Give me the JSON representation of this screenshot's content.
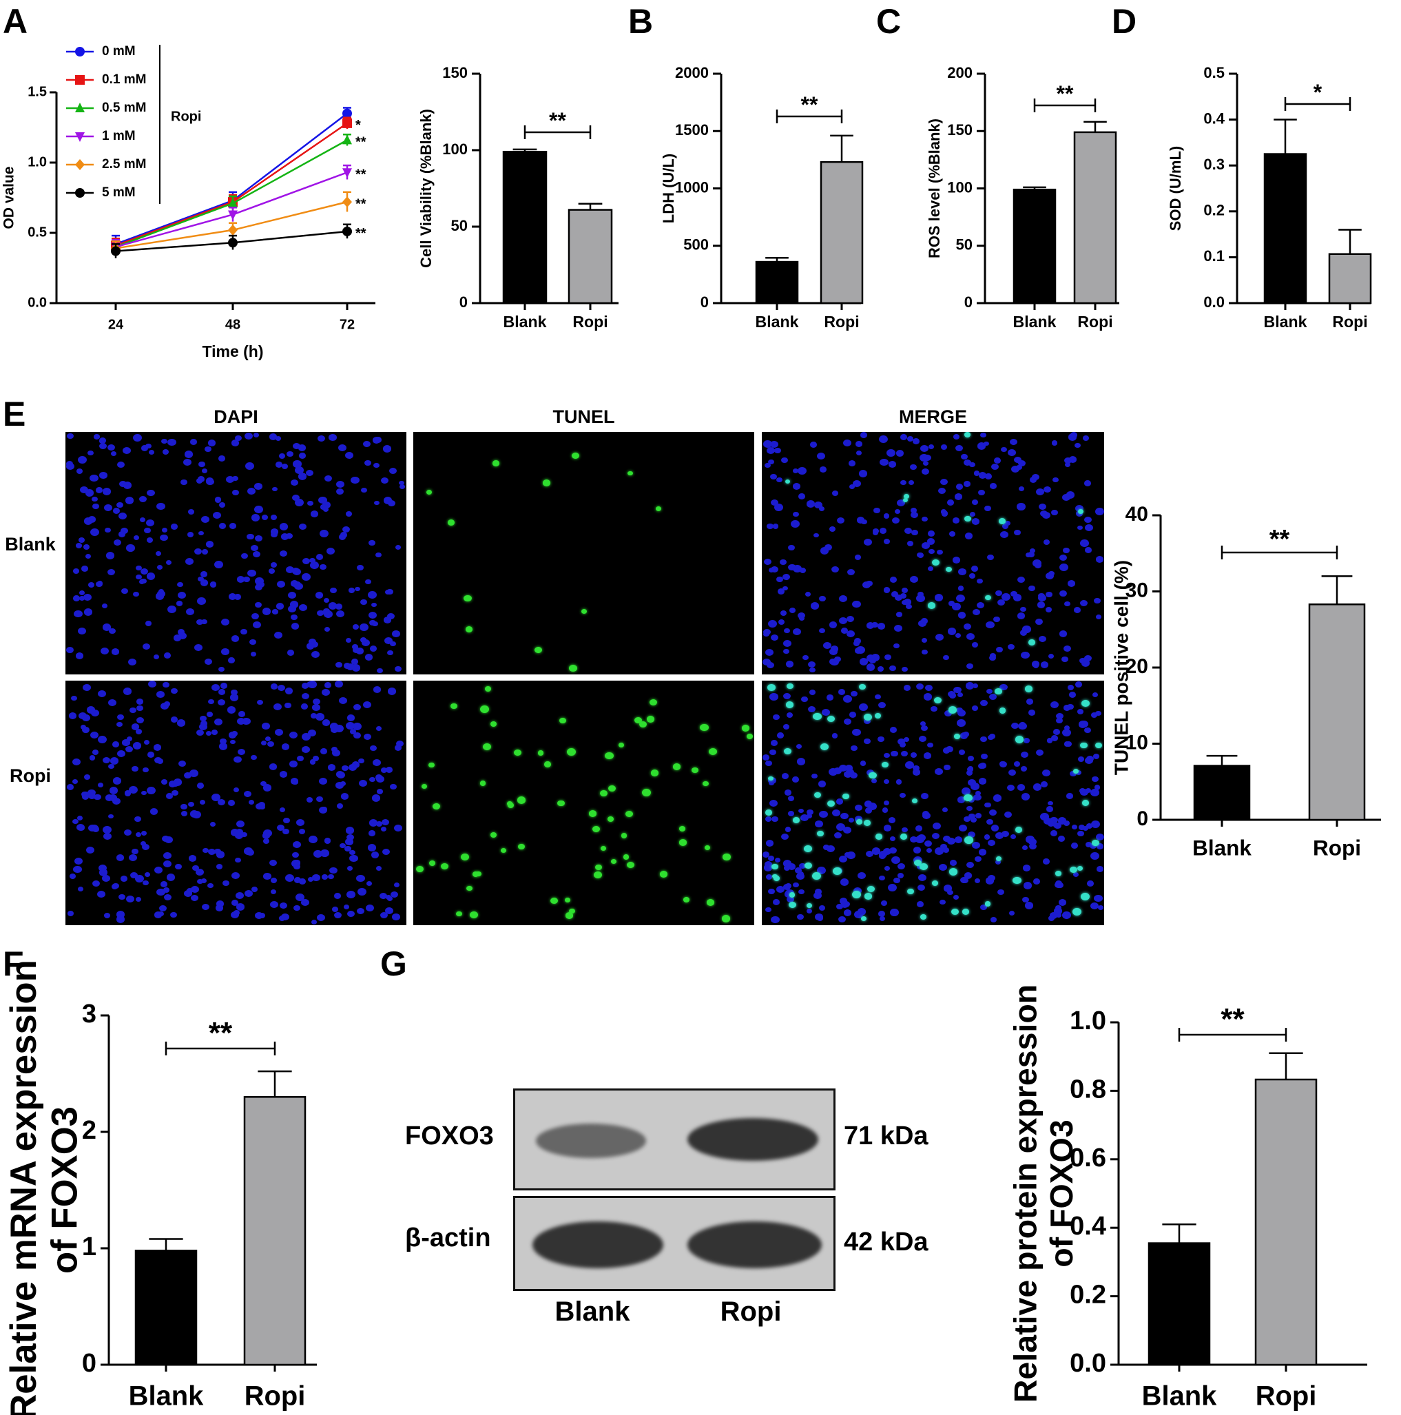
{
  "panels": {
    "A": "A",
    "B": "B",
    "C": "C",
    "D": "D",
    "E": "E",
    "F": "F",
    "G": "G"
  },
  "colors": {
    "blank_bar": "#000000",
    "ropi_bar": "#a6a6a8",
    "dapi_nuclei": "#1c1ccf",
    "tunel_signal": "#2fe02f",
    "merge_signal": "#35e0c8",
    "blot_background": "#c9c9c9",
    "blot_band": "#3a3a3a"
  },
  "chart_data": [
    {
      "id": "A1",
      "type": "line",
      "xlabel": "Time (h)",
      "ylabel": "OD value",
      "x": [
        24,
        48,
        72
      ],
      "ylim": [
        0,
        1.5
      ],
      "yticks": [
        "0.0",
        "0.5",
        "1.0",
        "1.5"
      ],
      "legend_group_label": "Ropi",
      "legend_position": "top-left",
      "series": [
        {
          "name": "0 mM",
          "color": "#1414e6",
          "marker": "circle",
          "values": [
            0.42,
            0.73,
            1.35
          ],
          "err": [
            0.06,
            0.06,
            0.04
          ],
          "sig": ""
        },
        {
          "name": "0.1 mM",
          "color": "#e61414",
          "marker": "square",
          "values": [
            0.41,
            0.72,
            1.28
          ],
          "err": [
            0.05,
            0.05,
            0.04
          ],
          "sig": "*"
        },
        {
          "name": "0.5 mM",
          "color": "#14b414",
          "marker": "triangle",
          "values": [
            0.4,
            0.71,
            1.16
          ],
          "err": [
            0.05,
            0.05,
            0.04
          ],
          "sig": "**"
        },
        {
          "name": "1 mM",
          "color": "#a014e6",
          "marker": "tri-down",
          "values": [
            0.4,
            0.63,
            0.93
          ],
          "err": [
            0.05,
            0.05,
            0.05
          ],
          "sig": "**"
        },
        {
          "name": "2.5 mM",
          "color": "#f08c14",
          "marker": "diamond",
          "values": [
            0.39,
            0.52,
            0.72
          ],
          "err": [
            0.05,
            0.05,
            0.07
          ],
          "sig": "**"
        },
        {
          "name": "5 mM",
          "color": "#000000",
          "marker": "circle",
          "values": [
            0.37,
            0.43,
            0.51
          ],
          "err": [
            0.05,
            0.05,
            0.05
          ],
          "sig": "**"
        }
      ]
    },
    {
      "id": "A2",
      "type": "bar",
      "ylabel": "Cell Viability (%Blank)",
      "categories": [
        "Blank",
        "Ropi"
      ],
      "values": [
        99,
        61
      ],
      "err": [
        1.5,
        4
      ],
      "ylim": [
        0,
        150
      ],
      "yticks": [
        "0",
        "50",
        "100",
        "150"
      ],
      "sig": "**"
    },
    {
      "id": "B",
      "type": "bar",
      "ylabel": "LDH (U/L)",
      "categories": [
        "Blank",
        "Ropi"
      ],
      "values": [
        360,
        1230
      ],
      "err": [
        35,
        230
      ],
      "ylim": [
        0,
        2000
      ],
      "yticks": [
        "0",
        "500",
        "1000",
        "1500",
        "2000"
      ],
      "sig": "**"
    },
    {
      "id": "C",
      "type": "bar",
      "ylabel": "ROS level (%Blank)",
      "categories": [
        "Blank",
        "Ropi"
      ],
      "values": [
        99,
        149
      ],
      "err": [
        2,
        9
      ],
      "ylim": [
        0,
        200
      ],
      "yticks": [
        "0",
        "50",
        "100",
        "150",
        "200"
      ],
      "sig": "**"
    },
    {
      "id": "D",
      "type": "bar",
      "ylabel": "SOD (U/mL)",
      "categories": [
        "Blank",
        "Ropi"
      ],
      "values": [
        0.325,
        0.107
      ],
      "err": [
        0.075,
        0.053
      ],
      "ylim": [
        0,
        0.5
      ],
      "yticks": [
        "0.0",
        "0.1",
        "0.2",
        "0.3",
        "0.4",
        "0.5"
      ],
      "sig": "*"
    },
    {
      "id": "E",
      "type": "bar",
      "ylabel": "TUNEL positive cell (%)",
      "categories": [
        "Blank",
        "Ropi"
      ],
      "values": [
        7.1,
        28.3
      ],
      "err": [
        1.3,
        3.7
      ],
      "ylim": [
        0,
        40
      ],
      "yticks": [
        "0",
        "10",
        "20",
        "30",
        "40"
      ],
      "sig": "**"
    },
    {
      "id": "F",
      "type": "bar",
      "ylabel": [
        "Relative mRNA expression",
        "of FOXO3"
      ],
      "categories": [
        "Blank",
        "Ropi"
      ],
      "values": [
        0.98,
        2.3
      ],
      "err": [
        0.1,
        0.22
      ],
      "ylim": [
        0,
        3
      ],
      "yticks": [
        "0",
        "1",
        "2",
        "3"
      ],
      "sig": "**"
    },
    {
      "id": "G",
      "type": "bar",
      "ylabel": [
        "Relative protein expression",
        "of FOXO3"
      ],
      "categories": [
        "Blank",
        "Ropi"
      ],
      "values": [
        0.355,
        0.833
      ],
      "err": [
        0.055,
        0.077
      ],
      "ylim": [
        0,
        1.0
      ],
      "yticks": [
        "0.0",
        "0.2",
        "0.4",
        "0.6",
        "0.8",
        "1.0"
      ],
      "sig": "**"
    }
  ],
  "microscopy": {
    "columns": [
      "DAPI",
      "TUNEL",
      "MERGE"
    ],
    "rows": [
      "Blank",
      "Ropi"
    ]
  },
  "western_blot": {
    "proteins": [
      "FOXO3",
      "β-actin"
    ],
    "sizes": [
      "71 kDa",
      "42 kDa"
    ],
    "lanes": [
      "Blank",
      "Ropi"
    ]
  }
}
